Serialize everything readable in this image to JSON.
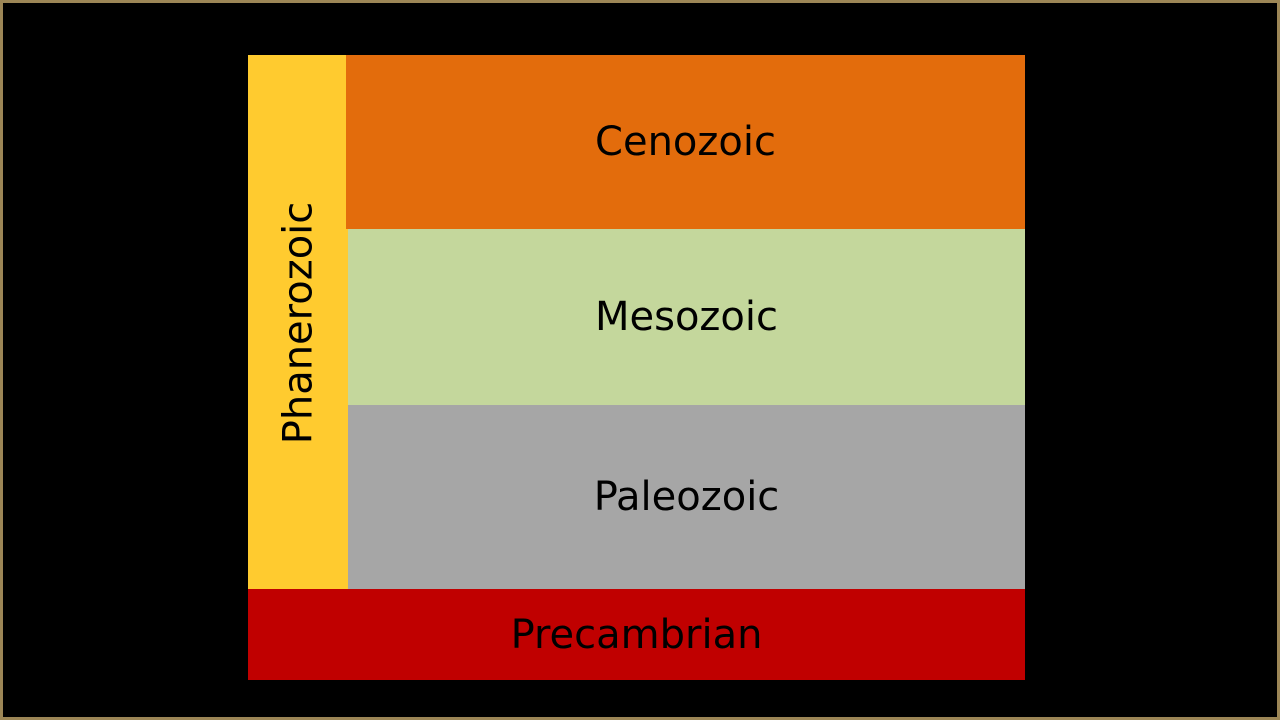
{
  "eon": {
    "label": "Phanerozoic"
  },
  "eras": [
    {
      "label": "Cenozoic"
    },
    {
      "label": "Mesozoic"
    },
    {
      "label": "Paleozoic"
    }
  ],
  "base": {
    "label": "Precambrian"
  }
}
